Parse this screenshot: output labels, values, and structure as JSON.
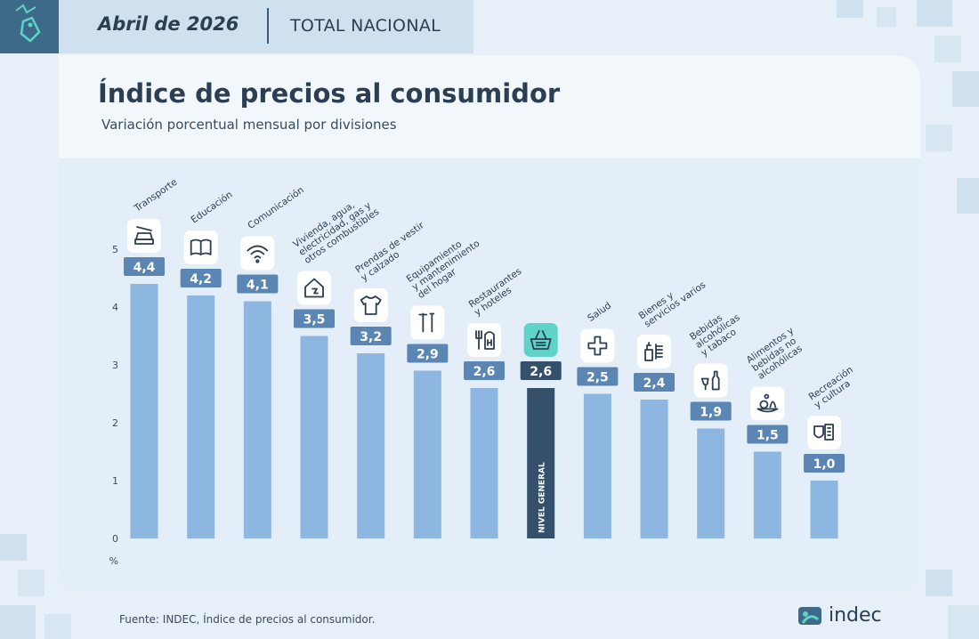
{
  "header": {
    "date": "Abril de 2026",
    "scope": "TOTAL NACIONAL"
  },
  "colors": {
    "bar": "#8db6e0",
    "bar_highlight": "#35506b",
    "label_bg": "#5b86b3",
    "label_bg_highlight": "#35506b",
    "icon_highlight_bg": "#5fd3c8",
    "title": "#2b3e52"
  },
  "chart_data": {
    "type": "bar",
    "title": "Índice de precios al consumidor",
    "subtitle": "Variación porcentual mensual por divisiones",
    "unit": "%",
    "ylim": [
      0,
      5
    ],
    "yticks": [
      "0",
      "1",
      "2",
      "3",
      "4",
      "5"
    ],
    "grid": false,
    "categories": [
      "Transporte",
      "Educación",
      "Comunicación",
      "Vivienda, agua, electricidad, gas y otros combustibles",
      "Prendas de vestir y calzado",
      "Equipamiento y mantenimiento del hogar",
      "Restaurantes y hoteles",
      "NIVEL GENERAL",
      "Salud",
      "Bienes y servicios varios",
      "Bebidas alcohólicas y tabaco",
      "Alimentos y bebidas no alcohólicas",
      "Recreación y cultura"
    ],
    "category_lines": [
      [
        "Transporte"
      ],
      [
        "Educación"
      ],
      [
        "Comunicación"
      ],
      [
        "Vivienda, agua,",
        "electricidad, gas y",
        "otros combustibles"
      ],
      [
        "Prendas de vestir",
        "y calzado"
      ],
      [
        "Equipamiento",
        "y mantenimiento",
        "del hogar"
      ],
      [
        "Restaurantes",
        "y hoteles"
      ],
      [],
      [
        "Salud"
      ],
      [
        "Bienes y",
        "servicios varios"
      ],
      [
        "Bebidas",
        "alcohólicas",
        "y tabaco"
      ],
      [
        "Alimentos y",
        "bebidas no",
        "alcohólicas"
      ],
      [
        "Recreación",
        "y cultura"
      ]
    ],
    "values": [
      4.4,
      4.2,
      4.1,
      3.5,
      3.2,
      2.9,
      2.6,
      2.6,
      2.5,
      2.4,
      1.9,
      1.5,
      1.0
    ],
    "value_labels": [
      "4,4",
      "4,2",
      "4,1",
      "3,5",
      "3,2",
      "2,9",
      "2,6",
      "2,6",
      "2,5",
      "2,4",
      "1,9",
      "1,5",
      "1,0"
    ],
    "icons": [
      "car-wrench-icon",
      "book-icon",
      "wifi-icon",
      "house-utilities-icon",
      "tshirt-icon",
      "tools-icon",
      "restaurant-hotel-icon",
      "basket-icon",
      "health-cross-icon",
      "toiletries-icon",
      "bottle-icon",
      "food-icon",
      "theater-masks-icon"
    ],
    "highlight_index": 7
  },
  "footer": {
    "source": "Fuente: INDEC, Índice de precios al consumidor.",
    "logo_text": "indec"
  }
}
